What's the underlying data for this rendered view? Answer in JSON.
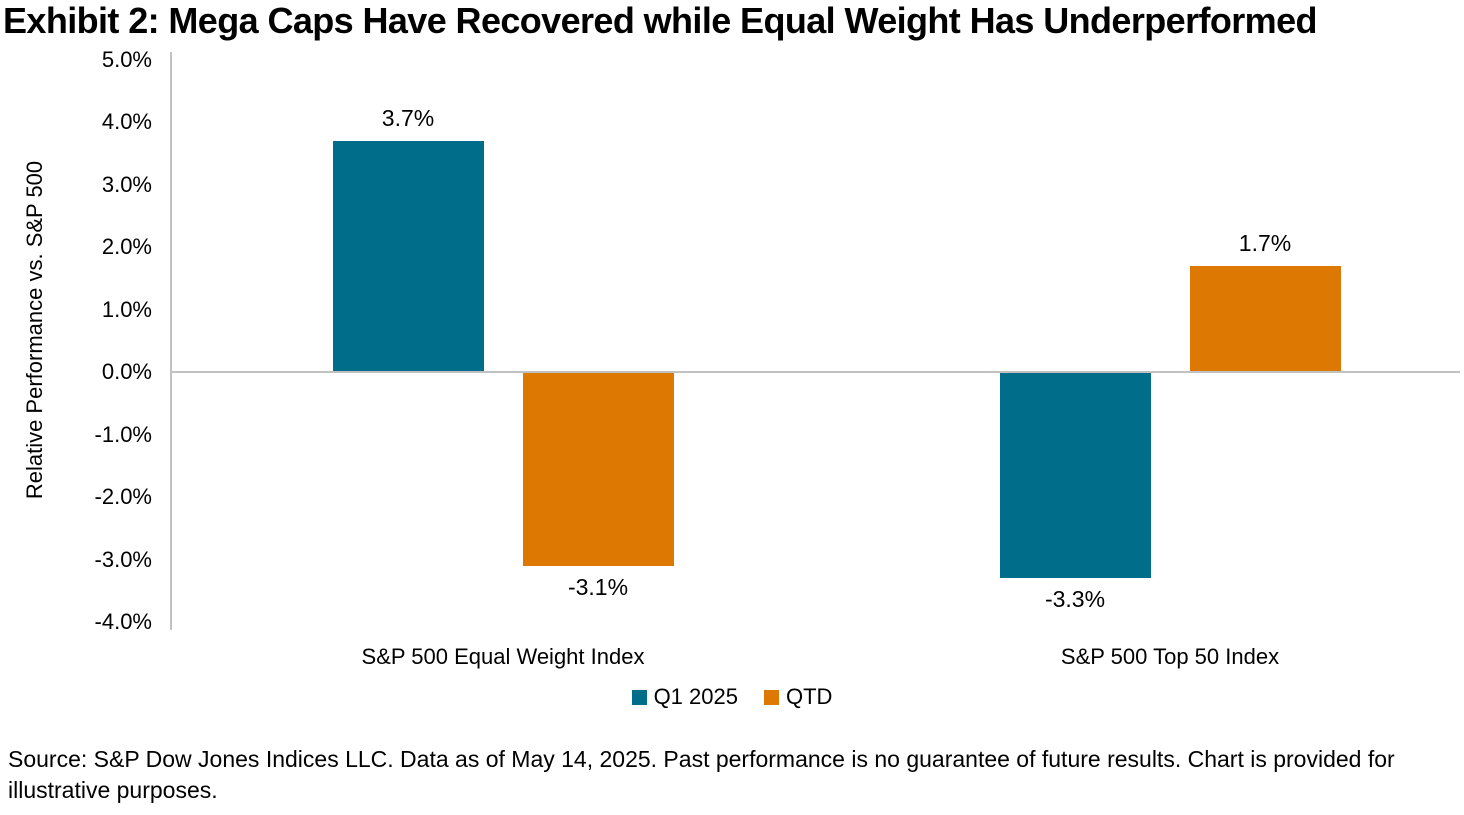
{
  "chart_data": {
    "type": "bar",
    "title": "Exhibit 2: Mega Caps Have Recovered while Equal Weight Has Underperformed",
    "categories": [
      "S&P 500 Equal Weight Index",
      "S&P 500 Top 50 Index"
    ],
    "series": [
      {
        "name": "Q1 2025",
        "color": "#006D8A",
        "values": [
          3.7,
          -3.3
        ],
        "labels": [
          "3.7%",
          "-3.3%"
        ]
      },
      {
        "name": "QTD",
        "color": "#DD7902",
        "values": [
          -3.1,
          1.7
        ],
        "labels": [
          "-3.1%",
          "1.7%"
        ]
      }
    ],
    "xlabel": "",
    "ylabel": "Relative Performance vs. S&P 500",
    "ylim": [
      -4.0,
      5.0
    ],
    "ytick_step": 1.0,
    "ytick_labels": [
      "5.0%",
      "4.0%",
      "3.0%",
      "2.0%",
      "1.0%",
      "0.0%",
      "-1.0%",
      "-2.0%",
      "-3.0%",
      "-4.0%"
    ],
    "legend_position": "bottom",
    "grid": false,
    "axis_color": "#C1C1C1",
    "background_color": "#FFFFFF",
    "text_color": "#000000"
  },
  "footer": {
    "source": "Source: S&P Dow Jones Indices LLC. Data as of May 14, 2025. Past performance is no guarantee of future results. Chart is provided for illustrative purposes."
  }
}
